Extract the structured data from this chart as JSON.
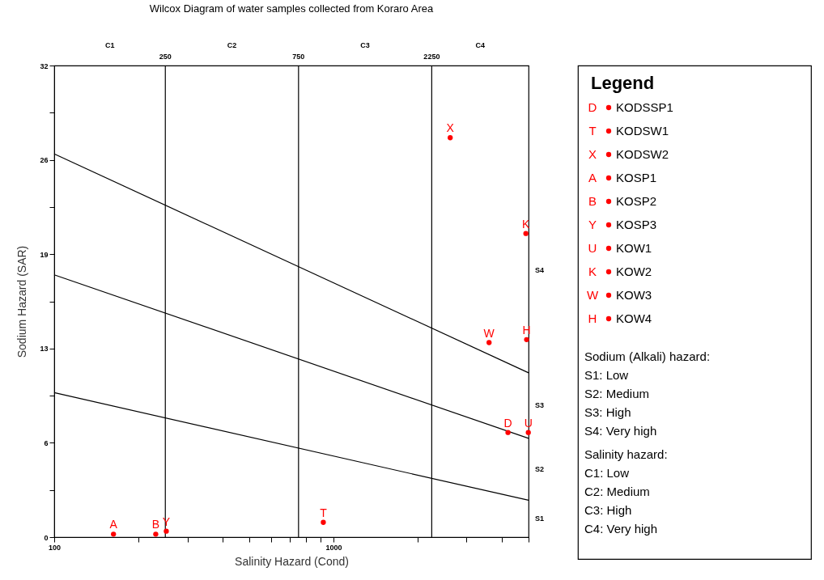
{
  "chart_data": {
    "type": "scatter",
    "title": "Wilcox Diagram of water samples collected from Koraro Area",
    "xlabel": "Salinity Hazard (Cond)",
    "ylabel": "Sodium Hazard (SAR)",
    "legend_title": "Legend",
    "log": "x",
    "grid": false,
    "legend": "right",
    "xlim": [
      100,
      5000
    ],
    "xticks": [
      100,
      {
        "value": 200,
        "label": null
      },
      {
        "value": 300,
        "label": null
      },
      {
        "value": 400,
        "label": null
      },
      {
        "value": 500,
        "label": null
      },
      {
        "value": 600,
        "label": null
      },
      {
        "value": 700,
        "label": null
      },
      {
        "value": 800,
        "label": null
      },
      {
        "value": 900,
        "label": null
      },
      1000,
      {
        "value": 2000,
        "label": null
      },
      {
        "value": 3000,
        "label": null
      },
      {
        "value": 4000,
        "label": null
      },
      {
        "value": 5000,
        "label": null
      }
    ],
    "ylim": [
      0,
      32
    ],
    "yticks": [
      0,
      {
        "value": 3.2,
        "label": null
      },
      {
        "value": 6.4,
        "label": "6"
      },
      {
        "value": 9.6,
        "label": null
      },
      {
        "value": 12.8,
        "label": "13"
      },
      {
        "value": 16,
        "label": null
      },
      {
        "value": 19.2,
        "label": "19"
      },
      {
        "value": 22.4,
        "label": null
      },
      {
        "value": 25.6,
        "label": "26"
      },
      {
        "value": 28.8,
        "label": null
      },
      32
    ],
    "series": [
      {
        "name": "KODSSP1",
        "color": "#ff0000",
        "marker": "circle",
        "x": [
          4220
        ],
        "values": [
          7.1
        ]
      },
      {
        "name": "KODSW1",
        "color": "#ff0000",
        "marker": "circle",
        "x": [
          920
        ],
        "values": [
          1.0
        ]
      },
      {
        "name": "KODSW2",
        "color": "#ff0000",
        "marker": "circle",
        "x": [
          2620
        ],
        "values": [
          27.1
        ]
      },
      {
        "name": "KOSP1",
        "color": "#ff0000",
        "marker": "circle",
        "x": [
          163
        ],
        "values": [
          0.2
        ]
      },
      {
        "name": "KOSP2",
        "color": "#ff0000",
        "marker": "circle",
        "x": [
          231
        ],
        "values": [
          0.2
        ]
      },
      {
        "name": "KOSP3",
        "color": "#ff0000",
        "marker": "circle",
        "x": [
          252
        ],
        "values": [
          0.4
        ]
      },
      {
        "name": "KOW1",
        "color": "#ff0000",
        "marker": "circle",
        "x": [
          4990
        ],
        "values": [
          7.1
        ]
      },
      {
        "name": "KOW2",
        "color": "#ff0000",
        "marker": "circle",
        "x": [
          4890
        ],
        "values": [
          20.6
        ]
      },
      {
        "name": "KOW3",
        "color": "#ff0000",
        "marker": "circle",
        "x": [
          3610
        ],
        "values": [
          13.2
        ]
      },
      {
        "name": "KOW4",
        "color": "#ff0000",
        "marker": "circle",
        "x": [
          4920
        ],
        "values": [
          13.4
        ]
      },
      {
        "type": "line",
        "color": "#000000",
        "x": [
          100,
          5000
        ],
        "values": [
          26.0,
          11.15
        ]
      },
      {
        "type": "line",
        "color": "#000000",
        "x": [
          100,
          5000
        ],
        "values": [
          17.8,
          6.7
        ]
      },
      {
        "type": "line",
        "color": "#000000",
        "x": [
          100,
          5000
        ],
        "values": [
          9.8,
          2.5
        ]
      }
    ],
    "ref_lines": [
      {
        "axis": "x",
        "value": 250,
        "label": "250",
        "color": "#000000"
      },
      {
        "axis": "x",
        "value": 750,
        "label": "750",
        "color": "#000000"
      },
      {
        "axis": "x",
        "value": 2250,
        "label": "2250",
        "color": "#000000"
      }
    ],
    "annotations": [
      {
        "text": "D",
        "x": 4220,
        "y": 7.1
      },
      {
        "text": "T",
        "x": 920,
        "y": 1.0
      },
      {
        "text": "X",
        "x": 2620,
        "y": 27.1
      },
      {
        "text": "A",
        "x": 163,
        "y": 0.2
      },
      {
        "text": "B",
        "x": 231,
        "y": 0.2
      },
      {
        "text": "Y",
        "x": 252,
        "y": 0.4
      },
      {
        "text": "U",
        "x": 4990,
        "y": 7.1
      },
      {
        "text": "K",
        "x": 4890,
        "y": 20.6
      },
      {
        "text": "W",
        "x": 3610,
        "y": 13.2
      },
      {
        "text": "H",
        "x": 4920,
        "y": 13.4
      },
      "C1",
      "C2",
      "C3",
      "C4",
      "S4",
      "S3",
      "S2",
      "S1",
      "Sodium (Alkali) hazard:",
      "S1: Low",
      "S2: Medium",
      "S3: High",
      "S4: Very high",
      "Salinity hazard:",
      "C1: Low",
      "C2: Medium",
      "C3: High",
      "C4: Very high"
    ]
  }
}
